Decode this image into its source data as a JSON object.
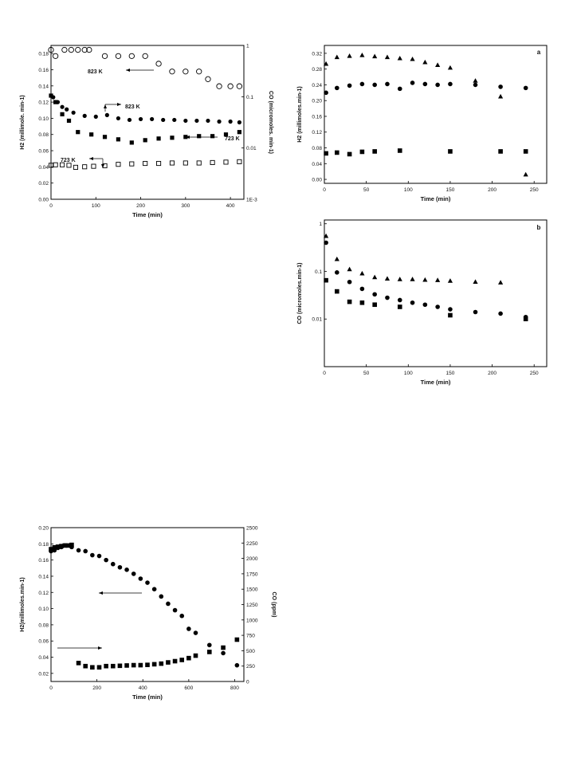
{
  "charts": [
    {
      "id": "chart1",
      "type": "scatter",
      "xlabel": "Time (min)",
      "ylabel_left": "H2 (millimole. min-1)",
      "ylabel_right": "CO (micromoles. min-1)",
      "xticks": [
        "0",
        "100",
        "200",
        "300",
        "400"
      ],
      "yticks_left": [
        "0.00",
        "0.02",
        "0.04",
        "0.06",
        "0.08",
        "0.10",
        "0.12",
        "0.14",
        "0.16",
        "0.18"
      ],
      "yticks_right": [
        "1E-3",
        "0.01",
        "0.1",
        "1"
      ],
      "annotations": [
        "823 K",
        "823 K",
        "723 K",
        "723 K"
      ]
    },
    {
      "id": "chart2",
      "type": "scatter",
      "panel_label": "a",
      "xlabel": "Time (min)",
      "ylabel": "H2 (millimoles.min-1)",
      "xticks": [
        "0",
        "50",
        "100",
        "150",
        "200",
        "250"
      ],
      "yticks": [
        "0.00",
        "0.04",
        "0.08",
        "0.12",
        "0.16",
        "0.20",
        "0.24",
        "0.28",
        "0.32"
      ]
    },
    {
      "id": "chart3",
      "type": "scatter",
      "panel_label": "b",
      "xlabel": "Time (min)",
      "ylabel": "CO (micromoles.min-1)",
      "xticks": [
        "0",
        "50",
        "100",
        "150",
        "200",
        "250"
      ],
      "yticks": [
        "0.01",
        "0.1",
        "1"
      ]
    },
    {
      "id": "chart4",
      "type": "scatter",
      "xlabel": "Time (min)",
      "ylabel_left": "H2(millimoles.min-1)",
      "ylabel_right": "CO (ppm)",
      "xticks": [
        "0",
        "200",
        "400",
        "600",
        "800"
      ],
      "yticks_left": [
        "0.02",
        "0.04",
        "0.06",
        "0.08",
        "0.10",
        "0.12",
        "0.14",
        "0.16",
        "0.18",
        "0.20"
      ],
      "yticks_right": [
        "0",
        "250",
        "500",
        "750",
        "1000",
        "1250",
        "1500",
        "1750",
        "2000",
        "2250",
        "2500"
      ]
    }
  ],
  "chart_data": [
    {
      "type": "scatter",
      "title": "",
      "xlabel": "Time (min)",
      "ylabel": "H2 (millimole. min-1)",
      "y2label": "CO (micromoles. min-1)",
      "xlim": [
        0,
        430
      ],
      "ylim": [
        0,
        0.19
      ],
      "y2lim": [
        0.001,
        1
      ],
      "y2scale": "log",
      "grid": false,
      "series": [
        {
          "marker": "filled-circle",
          "axis": "left",
          "x": [
            0,
            5,
            15,
            25,
            35,
            50,
            75,
            100,
            125,
            150,
            175,
            200,
            225,
            250,
            275,
            300,
            325,
            350,
            375,
            400,
            420
          ],
          "y": [
            0.128,
            0.126,
            0.12,
            0.114,
            0.111,
            0.107,
            0.103,
            0.102,
            0.104,
            0.1,
            0.098,
            0.099,
            0.099,
            0.098,
            0.098,
            0.097,
            0.097,
            0.097,
            0.096,
            0.096,
            0.095
          ]
        },
        {
          "marker": "filled-square",
          "axis": "left",
          "x": [
            0,
            10,
            25,
            40,
            60,
            90,
            120,
            150,
            180,
            210,
            240,
            270,
            300,
            330,
            360,
            390,
            420
          ],
          "y": [
            0.128,
            0.12,
            0.105,
            0.097,
            0.083,
            0.08,
            0.077,
            0.074,
            0.07,
            0.073,
            0.075,
            0.076,
            0.077,
            0.078,
            0.078,
            0.08,
            0.083
          ]
        },
        {
          "marker": "open-circle",
          "axis": "right",
          "x": [
            0,
            10,
            30,
            45,
            60,
            75,
            85,
            120,
            150,
            180,
            210,
            240,
            270,
            300,
            330,
            350,
            375,
            400,
            420
          ],
          "y": [
            0.82,
            0.62,
            0.82,
            0.82,
            0.82,
            0.82,
            0.82,
            0.62,
            0.62,
            0.62,
            0.62,
            0.44,
            0.31,
            0.31,
            0.31,
            0.22,
            0.16,
            0.16,
            0.16
          ]
        },
        {
          "marker": "open-square",
          "axis": "right",
          "x": [
            0,
            10,
            25,
            40,
            55,
            75,
            95,
            120,
            150,
            180,
            210,
            240,
            270,
            300,
            330,
            360,
            390,
            420
          ],
          "y": [
            0.0046,
            0.0047,
            0.0047,
            0.0046,
            0.0042,
            0.0043,
            0.0044,
            0.0045,
            0.0048,
            0.0049,
            0.005,
            0.005,
            0.0051,
            0.0051,
            0.0051,
            0.0052,
            0.0053,
            0.0054
          ]
        }
      ],
      "annotations": [
        "823 K",
        "823 K",
        "723 K",
        "723 K"
      ]
    },
    {
      "type": "scatter",
      "title": "a",
      "xlabel": "Time (min)",
      "ylabel": "H2 (millimoles.min-1)",
      "xlim": [
        0,
        265
      ],
      "ylim": [
        -0.01,
        0.34
      ],
      "grid": false,
      "series": [
        {
          "marker": "filled-triangle",
          "x": [
            2,
            15,
            30,
            45,
            60,
            75,
            90,
            105,
            120,
            135,
            150,
            180,
            210,
            240
          ],
          "y": [
            0.293,
            0.31,
            0.313,
            0.315,
            0.312,
            0.31,
            0.307,
            0.305,
            0.297,
            0.29,
            0.283,
            0.25,
            0.21,
            0.012
          ]
        },
        {
          "marker": "filled-circle",
          "x": [
            2,
            15,
            30,
            45,
            60,
            75,
            90,
            105,
            120,
            135,
            150,
            180,
            210,
            240
          ],
          "y": [
            0.22,
            0.232,
            0.238,
            0.242,
            0.24,
            0.242,
            0.23,
            0.245,
            0.242,
            0.24,
            0.242,
            0.24,
            0.235,
            0.232
          ]
        },
        {
          "marker": "filled-square",
          "x": [
            2,
            15,
            30,
            45,
            60,
            90,
            150,
            210,
            240
          ],
          "y": [
            0.066,
            0.068,
            0.064,
            0.07,
            0.071,
            0.073,
            0.071,
            0.071,
            0.071
          ]
        }
      ]
    },
    {
      "type": "scatter",
      "title": "b",
      "xlabel": "Time (min)",
      "ylabel": "CO (micromoles.min-1)",
      "xlim": [
        0,
        265
      ],
      "ylim": [
        0.001,
        1.2
      ],
      "yscale": "log",
      "grid": false,
      "series": [
        {
          "marker": "filled-triangle",
          "x": [
            2,
            15,
            30,
            45,
            60,
            75,
            90,
            105,
            120,
            135,
            150,
            180,
            210
          ],
          "y": [
            0.55,
            0.18,
            0.11,
            0.09,
            0.075,
            0.07,
            0.068,
            0.068,
            0.066,
            0.065,
            0.063,
            0.06,
            0.058
          ]
        },
        {
          "marker": "filled-circle",
          "x": [
            2,
            15,
            30,
            45,
            60,
            75,
            90,
            105,
            120,
            135,
            150,
            180,
            210,
            240
          ],
          "y": [
            0.4,
            0.095,
            0.06,
            0.043,
            0.033,
            0.028,
            0.025,
            0.022,
            0.02,
            0.018,
            0.016,
            0.014,
            0.013,
            0.011
          ]
        },
        {
          "marker": "filled-square",
          "x": [
            2,
            15,
            30,
            45,
            60,
            90,
            150,
            240
          ],
          "y": [
            0.065,
            0.038,
            0.023,
            0.022,
            0.02,
            0.018,
            0.012,
            0.01
          ]
        }
      ]
    },
    {
      "type": "scatter",
      "title": "",
      "xlabel": "Time (min)",
      "ylabel": "H2(millimoles.min-1)",
      "y2label": "CO (ppm)",
      "xlim": [
        0,
        840
      ],
      "ylim": [
        0.01,
        0.2
      ],
      "y2lim": [
        0,
        2500
      ],
      "grid": false,
      "series": [
        {
          "marker": "filled-circle",
          "axis": "left",
          "x": [
            0,
            15,
            30,
            45,
            60,
            90,
            120,
            150,
            180,
            210,
            240,
            270,
            300,
            330,
            360,
            390,
            420,
            450,
            480,
            510,
            540,
            570,
            600,
            630,
            690,
            750,
            810
          ],
          "y": [
            0.171,
            0.172,
            0.175,
            0.176,
            0.178,
            0.176,
            0.172,
            0.171,
            0.166,
            0.165,
            0.16,
            0.155,
            0.151,
            0.148,
            0.143,
            0.137,
            0.132,
            0.124,
            0.115,
            0.106,
            0.098,
            0.091,
            0.075,
            0.07,
            0.055,
            0.045,
            0.03
          ]
        },
        {
          "marker": "filled-square",
          "axis": "right",
          "x": [
            0,
            15,
            30,
            45,
            60,
            75,
            90,
            120,
            150,
            180,
            210,
            240,
            270,
            300,
            330,
            360,
            390,
            420,
            450,
            480,
            510,
            540,
            570,
            600,
            630,
            690,
            750,
            810
          ],
          "y": [
            2150,
            2180,
            2190,
            2200,
            2210,
            2210,
            2220,
            300,
            250,
            230,
            230,
            250,
            250,
            255,
            260,
            265,
            265,
            270,
            280,
            290,
            310,
            330,
            350,
            380,
            420,
            480,
            550,
            680
          ]
        }
      ]
    }
  ]
}
